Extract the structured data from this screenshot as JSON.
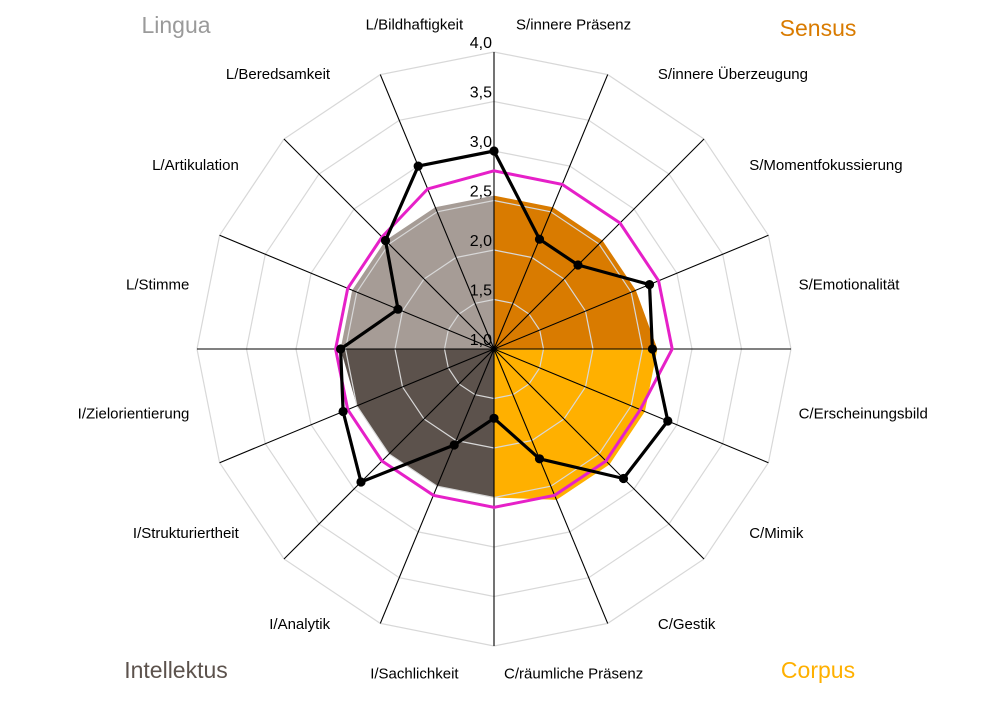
{
  "chart_data": {
    "type": "radar",
    "scale": {
      "min": 1.0,
      "max": 4.0,
      "step": 0.5
    },
    "ticks": [
      "1,0",
      "1,5",
      "2,0",
      "2,5",
      "3,0",
      "3,5",
      "4,0"
    ],
    "axes": [
      "S/innere Präsenz",
      "S/innere Überzeugung",
      "S/Momentfokussierung",
      "S/Emotionalität",
      "C/Erscheinungsbild",
      "C/Mimik",
      "C/Gestik",
      "C/räumliche Präsenz",
      "I/Sachlichkeit",
      "I/Analytik",
      "I/Strukturiertheit",
      "I/Zielorientierung",
      "L/Stimme",
      "L/Artikulation",
      "L/Beredsamkeit",
      "L/Bildhaftigkeit"
    ],
    "quadrants": [
      {
        "label": "Sensus",
        "color": "#D97B00",
        "text_color": "#D97B00",
        "position": "top-right"
      },
      {
        "label": "Corpus",
        "color": "#FFB000",
        "text_color": "#FFB000",
        "position": "bottom-right"
      },
      {
        "label": "Intellektus",
        "color": "#5C524C",
        "text_color": "#5C524C",
        "position": "bottom-left"
      },
      {
        "label": "Lingua",
        "color": "#A69C96",
        "text_color": "#9A9A9A",
        "position": "top-left"
      }
    ],
    "series": [
      {
        "kind": "filled-area",
        "values": [
          2.55,
          2.55,
          2.55,
          2.55,
          2.65,
          2.65,
          2.65,
          2.65,
          2.5,
          2.5,
          2.5,
          2.5,
          2.55,
          2.55,
          2.55,
          2.55
        ],
        "color": "multi"
      },
      {
        "kind": "line",
        "values": [
          2.8,
          2.8,
          2.8,
          2.8,
          2.8,
          2.6,
          2.6,
          2.6,
          2.6,
          2.6,
          2.6,
          2.6,
          2.6,
          2.6,
          2.6,
          2.75
        ],
        "color": "#E620C8"
      },
      {
        "kind": "line-with-markers",
        "values": [
          3.0,
          2.2,
          2.2,
          2.7,
          2.6,
          2.9,
          2.85,
          2.2,
          1.7,
          2.05,
          2.9,
          2.65,
          2.55,
          2.05,
          2.55,
          3.0
        ],
        "color": "#000000"
      }
    ]
  }
}
